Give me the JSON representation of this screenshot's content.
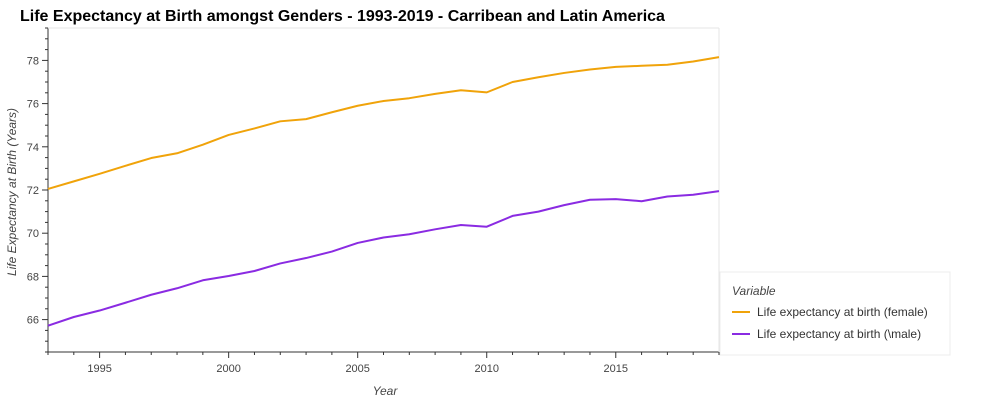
{
  "chart_data": {
    "type": "line",
    "title": "Life Expectancy at Birth amongst Genders - 1993-2019 - Carribean and Latin America",
    "xlabel": "Year",
    "ylabel": "Life Expectancy at Birth (Years)",
    "xlim": [
      1993,
      2019
    ],
    "ylim": [
      64.5,
      79.5
    ],
    "x_ticks": [
      1995,
      2000,
      2005,
      2010,
      2015
    ],
    "y_ticks": [
      66,
      68,
      70,
      72,
      74,
      76,
      78
    ],
    "grid": false,
    "legend": {
      "title": "Variable",
      "placement": "outside-right-bottom"
    },
    "x": [
      1993,
      1994,
      1995,
      1996,
      1997,
      1998,
      1999,
      2000,
      2001,
      2002,
      2003,
      2004,
      2005,
      2006,
      2007,
      2008,
      2009,
      2010,
      2011,
      2012,
      2013,
      2014,
      2015,
      2016,
      2017,
      2018,
      2019
    ],
    "series": [
      {
        "name": "Life expectancy at birth (female)",
        "color": "#f0a30a",
        "values": [
          72.05,
          72.4,
          72.75,
          73.12,
          73.48,
          73.7,
          74.1,
          74.55,
          74.85,
          75.18,
          75.28,
          75.6,
          75.9,
          76.12,
          76.25,
          76.45,
          76.62,
          76.52,
          77.0,
          77.22,
          77.42,
          77.58,
          77.7,
          77.75,
          77.8,
          77.95,
          78.15
        ]
      },
      {
        "name": "Life expectancy at birth (\\male)",
        "color": "#8a2be2",
        "values": [
          65.72,
          66.12,
          66.42,
          66.78,
          67.15,
          67.45,
          67.82,
          68.02,
          68.25,
          68.6,
          68.85,
          69.15,
          69.55,
          69.8,
          69.95,
          70.18,
          70.38,
          70.3,
          70.8,
          71.0,
          71.3,
          71.55,
          71.58,
          71.48,
          71.7,
          71.78,
          71.95
        ]
      }
    ]
  }
}
